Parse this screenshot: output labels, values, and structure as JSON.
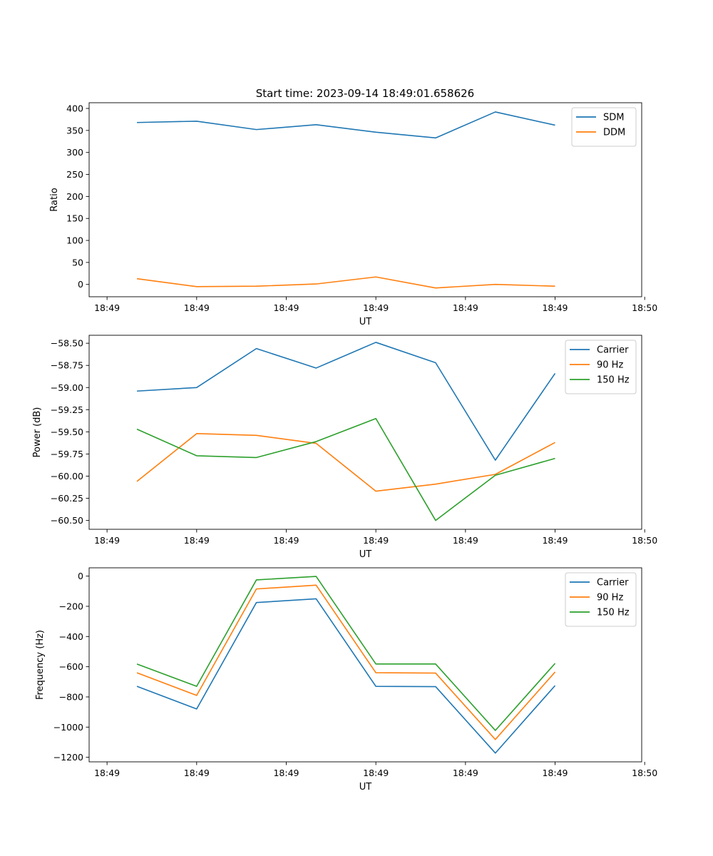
{
  "title": "Start time: 2023-09-14 18:49:01.658626",
  "colors": {
    "blue": "#1f77b4",
    "orange": "#ff7f0e",
    "green": "#2ca02c"
  },
  "chart_data": [
    {
      "type": "line",
      "title": "Start time: 2023-09-14 18:49:01.658626",
      "xlabel": "UT",
      "ylabel": "Ratio",
      "x": [
        1,
        2,
        3,
        4,
        5,
        6,
        7,
        8
      ],
      "xlim": [
        0.2,
        9.45
      ],
      "xticks": [
        0.5,
        2,
        3.5,
        5,
        6.5,
        8,
        9.5
      ],
      "xtick_labels": [
        "18:49",
        "18:49",
        "18:49",
        "18:49",
        "18:49",
        "18:49",
        "18:50"
      ],
      "ylim": [
        -28,
        413
      ],
      "yticks": [
        0,
        50,
        100,
        150,
        200,
        250,
        300,
        350,
        400
      ],
      "ytick_labels": [
        "0",
        "50",
        "100",
        "150",
        "200",
        "250",
        "300",
        "350",
        "400"
      ],
      "legend": "top-right",
      "series": [
        {
          "name": "SDM",
          "color": "#1f77b4",
          "values": [
            368,
            371,
            352,
            363,
            346,
            333,
            392,
            362
          ]
        },
        {
          "name": "DDM",
          "color": "#ff7f0e",
          "values": [
            13,
            -5,
            -4,
            1,
            17,
            -8,
            0,
            -4
          ]
        }
      ]
    },
    {
      "type": "line",
      "title": "",
      "xlabel": "UT",
      "ylabel": "Power (dB)",
      "x": [
        1,
        2,
        3,
        4,
        5,
        6,
        7,
        8
      ],
      "xlim": [
        0.2,
        9.45
      ],
      "xticks": [
        0.5,
        2,
        3.5,
        5,
        6.5,
        8,
        9.5
      ],
      "xtick_labels": [
        "18:49",
        "18:49",
        "18:49",
        "18:49",
        "18:49",
        "18:49",
        "18:50"
      ],
      "ylim": [
        -60.6,
        -58.41
      ],
      "yticks": [
        -60.5,
        -60.25,
        -60.0,
        -59.75,
        -59.5,
        -59.25,
        -59.0,
        -58.75,
        -58.5
      ],
      "ytick_labels": [
        "−60.50",
        "−60.25",
        "−60.00",
        "−59.75",
        "−59.50",
        "−59.25",
        "−59.00",
        "−58.75",
        "−58.50"
      ],
      "legend": "top-right",
      "series": [
        {
          "name": "Carrier",
          "color": "#1f77b4",
          "values": [
            -59.04,
            -59.0,
            -58.56,
            -58.78,
            -58.49,
            -58.72,
            -59.82,
            -58.84
          ]
        },
        {
          "name": "90 Hz",
          "color": "#ff7f0e",
          "values": [
            -60.06,
            -59.52,
            -59.54,
            -59.63,
            -60.17,
            -60.09,
            -59.98,
            -59.62
          ]
        },
        {
          "name": "150 Hz",
          "color": "#2ca02c",
          "values": [
            -59.47,
            -59.77,
            -59.79,
            -59.61,
            -59.35,
            -60.5,
            -59.99,
            -59.8
          ]
        }
      ]
    },
    {
      "type": "line",
      "title": "",
      "xlabel": "UT",
      "ylabel": "Frequency (Hz)",
      "x": [
        1,
        2,
        3,
        4,
        5,
        6,
        7,
        8
      ],
      "xlim": [
        0.2,
        9.45
      ],
      "xticks": [
        0.5,
        2,
        3.5,
        5,
        6.5,
        8,
        9.5
      ],
      "xtick_labels": [
        "18:49",
        "18:49",
        "18:49",
        "18:49",
        "18:49",
        "18:49",
        "18:50"
      ],
      "ylim": [
        -1230,
        55
      ],
      "yticks": [
        -1200,
        -1000,
        -800,
        -600,
        -400,
        -200,
        0
      ],
      "ytick_labels": [
        "−1200",
        "−1000",
        "−800",
        "−600",
        "−400",
        "−200",
        "0"
      ],
      "legend": "top-right",
      "series": [
        {
          "name": "Carrier",
          "color": "#1f77b4",
          "values": [
            -730,
            -880,
            -175,
            -150,
            -730,
            -732,
            -1172,
            -725
          ]
        },
        {
          "name": "90 Hz",
          "color": "#ff7f0e",
          "values": [
            -640,
            -790,
            -85,
            -60,
            -640,
            -642,
            -1082,
            -635
          ]
        },
        {
          "name": "150 Hz",
          "color": "#2ca02c",
          "values": [
            -582,
            -730,
            -25,
            -2,
            -582,
            -582,
            -1022,
            -578
          ]
        }
      ]
    }
  ]
}
